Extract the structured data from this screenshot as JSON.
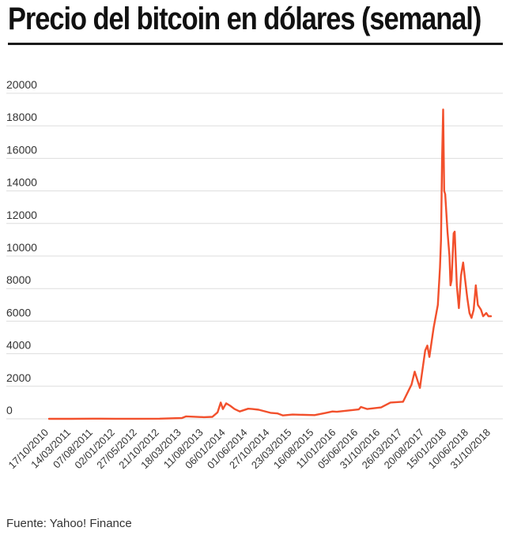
{
  "title": "Precio del bitcoin en dólares (semanal)",
  "source": "Fuente: Yahoo! Finance",
  "colors": {
    "line": "#f2502c",
    "grid": "#dddddd",
    "text": "#333333",
    "title": "#111111"
  },
  "chart_data": {
    "type": "line",
    "title": "Precio del bitcoin en dólares (semanal)",
    "xlabel": "",
    "ylabel": "",
    "ylim": [
      0,
      20000
    ],
    "yticks": [
      0,
      2000,
      4000,
      6000,
      8000,
      10000,
      12000,
      14000,
      16000,
      18000,
      20000
    ],
    "xtick_labels": [
      "17/10/2010",
      "14/03/2011",
      "07/08/2011",
      "02/01/2012",
      "27/05/2012",
      "21/10/2012",
      "18/03/2013",
      "11/08/2013",
      "06/01/2014",
      "01/06/2014",
      "27/10/2014",
      "23/03/2015",
      "16/08/2015",
      "11/01/2016",
      "05/06/2016",
      "31/10/2016",
      "26/03/2017",
      "20/08/2017",
      "15/01/2018",
      "10/06/2018",
      "31/10/2018"
    ],
    "grid": true,
    "legend": "none",
    "series": [
      {
        "x": [
          "17/10/2010",
          "14/03/2011",
          "07/08/2011",
          "02/01/2012",
          "27/05/2012",
          "21/10/2012",
          "18/03/2013",
          "15/04/2013",
          "11/08/2013",
          "06/10/2013",
          "10/11/2013",
          "01/12/2013",
          "15/12/2013",
          "06/01/2014",
          "02/02/2014",
          "02/03/2014",
          "06/04/2014",
          "01/06/2014",
          "29/06/2014",
          "10/08/2014",
          "27/10/2014",
          "14/12/2014",
          "18/01/2015",
          "23/03/2015",
          "16/08/2015",
          "01/11/2015",
          "13/12/2015",
          "11/01/2016",
          "05/06/2016",
          "19/06/2016",
          "31/07/2016",
          "31/10/2016",
          "01/01/2017",
          "26/03/2017",
          "21/05/2017",
          "11/06/2017",
          "16/07/2017",
          "20/08/2017",
          "03/09/2017",
          "17/09/2017",
          "15/10/2017",
          "12/11/2017",
          "26/11/2017",
          "03/12/2017",
          "10/12/2017",
          "17/12/2017",
          "24/12/2017",
          "31/12/2017",
          "15/01/2018",
          "28/01/2018",
          "04/02/2018",
          "11/02/2018",
          "25/02/2018",
          "04/03/2018",
          "18/03/2018",
          "01/04/2018",
          "15/04/2018",
          "29/04/2018",
          "13/05/2018",
          "27/05/2018",
          "10/06/2018",
          "24/06/2018",
          "08/07/2018",
          "22/07/2018",
          "05/08/2018",
          "26/08/2018",
          "09/09/2018",
          "30/09/2018",
          "14/10/2018",
          "31/10/2018"
        ],
        "values": [
          0.1,
          0.9,
          10,
          6,
          5,
          11,
          50,
          150,
          100,
          120,
          400,
          1000,
          600,
          950,
          800,
          600,
          450,
          620,
          600,
          560,
          370,
          330,
          210,
          260,
          230,
          370,
          450,
          430,
          580,
          730,
          600,
          700,
          1000,
          1050,
          2100,
          2900,
          1900,
          4200,
          4500,
          3800,
          5600,
          7000,
          9300,
          11000,
          15800,
          19000,
          14000,
          13800,
          11500,
          10000,
          8200,
          8500,
          11400,
          11500,
          8200,
          6800,
          8800,
          9600,
          8500,
          7400,
          6500,
          6200,
          6700,
          8200,
          7000,
          6700,
          6300,
          6500,
          6300,
          6300
        ]
      }
    ]
  }
}
